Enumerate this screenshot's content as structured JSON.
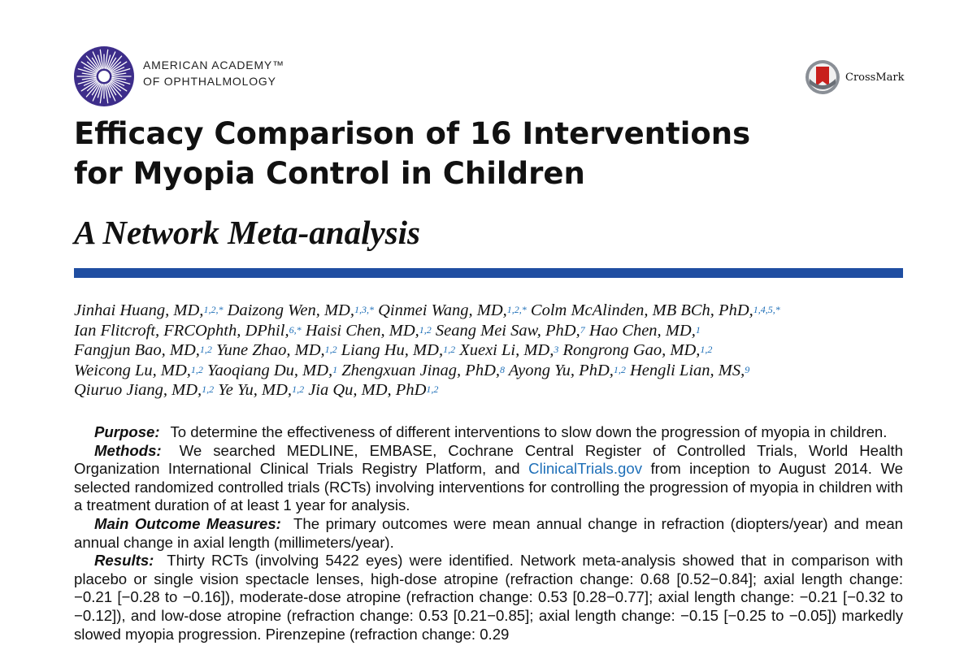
{
  "logo": {
    "line1": "AMERICAN ACADEMY™",
    "line2": "OF OPHTHALMOLOGY",
    "icon": "aao-starburst-icon"
  },
  "crossmark": {
    "label": "CrossMark",
    "icon": "crossmark-icon"
  },
  "title_lines": [
    "Efficacy Comparison of 16 Interventions",
    "for Myopia Control in Children"
  ],
  "subtitle": "A Network Meta-analysis",
  "authors": [
    [
      {
        "name": "Jinhai Huang, MD,",
        "sup": "1,2,*"
      },
      {
        "name": "Daizong Wen, MD,",
        "sup": "1,3,*"
      },
      {
        "name": "Qinmei Wang, MD,",
        "sup": "1,2,*"
      },
      {
        "name": "Colm McAlinden, MB BCh, PhD,",
        "sup": "1,4,5,*"
      }
    ],
    [
      {
        "name": "Ian Flitcroft, FRCOphth, DPhil,",
        "sup": "6,*"
      },
      {
        "name": "Haisi Chen, MD,",
        "sup": "1,2"
      },
      {
        "name": "Seang Mei Saw, PhD,",
        "sup": "7"
      },
      {
        "name": "Hao Chen, MD,",
        "sup": "1"
      }
    ],
    [
      {
        "name": "Fangjun Bao, MD,",
        "sup": "1,2"
      },
      {
        "name": "Yune Zhao, MD,",
        "sup": "1,2"
      },
      {
        "name": "Liang Hu, MD,",
        "sup": "1,2"
      },
      {
        "name": "Xuexi Li, MD,",
        "sup": "3"
      },
      {
        "name": "Rongrong Gao, MD,",
        "sup": "1,2"
      }
    ],
    [
      {
        "name": "Weicong Lu, MD,",
        "sup": "1,2"
      },
      {
        "name": "Yaoqiang Du, MD,",
        "sup": "1"
      },
      {
        "name": "Zhengxuan Jinag, PhD,",
        "sup": "8"
      },
      {
        "name": "Ayong Yu, PhD,",
        "sup": "1,2"
      },
      {
        "name": "Hengli Lian, MS,",
        "sup": "9"
      }
    ],
    [
      {
        "name": "Qiuruo Jiang, MD,",
        "sup": "1,2"
      },
      {
        "name": "Ye Yu, MD,",
        "sup": "1,2"
      },
      {
        "name": "Jia Qu, MD, PhD",
        "sup": "1,2"
      }
    ]
  ],
  "abstract": {
    "purpose_head": "Purpose:",
    "purpose": "To determine the effectiveness of different interventions to slow down the progression of myopia in children.",
    "methods_head": "Methods:",
    "methods_pre": "We searched MEDLINE, EMBASE, Cochrane Central Register of Controlled Trials, World Health Organization International Clinical Trials Registry Platform, and",
    "methods_link": "ClinicalTrials.gov",
    "methods_post": "from inception to August 2014. We selected randomized controlled trials (RCTs) involving interventions for controlling the progression of myopia in children with a treatment duration of at least 1 year for analysis.",
    "outcome_head": "Main Outcome Measures:",
    "outcome": "The primary outcomes were mean annual change in refraction (diopters/year) and mean annual change in axial length (millimeters/year).",
    "results_head": "Results:",
    "results": "Thirty RCTs (involving 5422 eyes) were identified. Network meta-analysis showed that in comparison with placebo or single vision spectacle lenses, high-dose atropine (refraction change: 0.68 [0.52−0.84]; axial length change: −0.21 [−0.28 to −0.16]), moderate-dose atropine (refraction change: 0.53 [0.28−0.77]; axial length change: −0.21 [−0.32 to −0.12]), and low-dose atropine (refraction change: 0.53 [0.21−0.85]; axial length change: −0.15 [−0.25 to −0.05]) markedly slowed myopia progression. Pirenzepine (refraction change: 0.29"
  }
}
